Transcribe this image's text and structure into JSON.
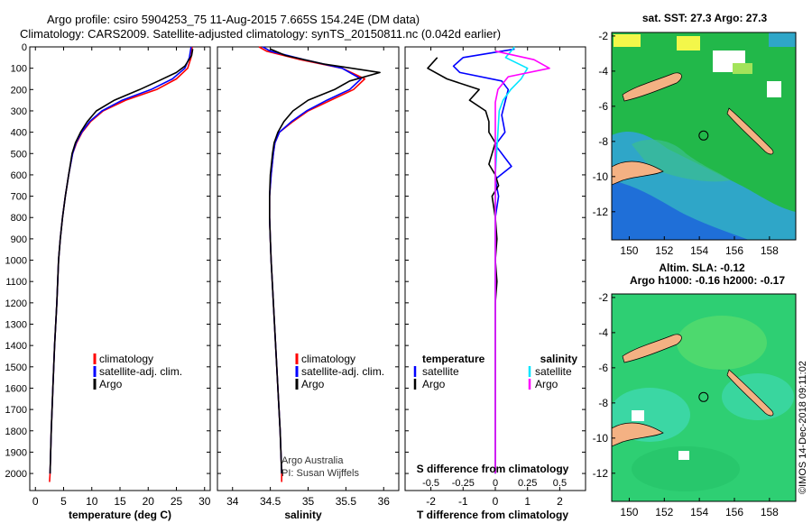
{
  "title": {
    "line1": "Argo profile: csiro 5904253_75 11-Aug-2015 7.665S 154.24E (DM data)",
    "line2": "Climatology: CARS2009. Satellite-adjusted climatology: synTS_20150811.nc (0.042d earlier)"
  },
  "credit": {
    "line1": "Argo Australia",
    "line2": "PI: Susan Wijffels"
  },
  "stamp": "©IMOS 14-Dec-2018 09:11:02",
  "colors": {
    "climatology": "#ff0000",
    "satellite": "#0000ff",
    "argo": "#000000",
    "argo_salinity_diff": "#ff00ff",
    "satellite_salinity_diff": "#00e5ff",
    "land": "#f4b183"
  },
  "chart_data": [
    {
      "type": "line",
      "name": "temperature-profile",
      "xlabel": "temperature (deg C)",
      "ylabel": "",
      "xlim": [
        -1,
        31
      ],
      "ylim": [
        2080,
        0
      ],
      "xticks": [
        0,
        5,
        10,
        15,
        20,
        25,
        30
      ],
      "yticks": [
        0,
        100,
        200,
        300,
        400,
        500,
        600,
        700,
        800,
        900,
        1000,
        1100,
        1200,
        1300,
        1400,
        1500,
        1600,
        1700,
        1800,
        1900,
        2000
      ],
      "legend": [
        "climatology",
        "satellite-adj. clim.",
        "Argo"
      ],
      "legend_position": "lower-center",
      "series": [
        {
          "name": "climatology",
          "color": "#ff0000",
          "values": [
            [
              27.8,
              0
            ],
            [
              27.6,
              50
            ],
            [
              27.0,
              100
            ],
            [
              25.0,
              150
            ],
            [
              21.5,
              200
            ],
            [
              16.0,
              250
            ],
            [
              12.0,
              300
            ],
            [
              9.8,
              350
            ],
            [
              8.3,
              400
            ],
            [
              7.3,
              450
            ],
            [
              6.6,
              500
            ],
            [
              5.9,
              600
            ],
            [
              5.3,
              700
            ],
            [
              4.8,
              800
            ],
            [
              4.4,
              900
            ],
            [
              4.1,
              1000
            ],
            [
              3.8,
              1200
            ],
            [
              3.4,
              1400
            ],
            [
              3.1,
              1600
            ],
            [
              2.8,
              1800
            ],
            [
              2.6,
              2000
            ],
            [
              2.5,
              2040
            ]
          ]
        },
        {
          "name": "satellite-adj. clim.",
          "color": "#0000ff",
          "values": [
            [
              27.6,
              0
            ],
            [
              27.3,
              50
            ],
            [
              26.5,
              100
            ],
            [
              24.3,
              150
            ],
            [
              20.5,
              200
            ],
            [
              15.4,
              250
            ],
            [
              11.8,
              300
            ],
            [
              9.6,
              350
            ],
            [
              8.2,
              400
            ],
            [
              7.2,
              450
            ],
            [
              6.6,
              500
            ],
            [
              5.9,
              600
            ],
            [
              5.3,
              700
            ],
            [
              4.8,
              800
            ],
            [
              4.4,
              900
            ],
            [
              4.1,
              1000
            ],
            [
              3.8,
              1200
            ],
            [
              3.4,
              1400
            ],
            [
              3.1,
              1600
            ],
            [
              2.8,
              1800
            ],
            [
              2.6,
              2000
            ]
          ]
        },
        {
          "name": "Argo",
          "color": "#000000",
          "values": [
            [
              27.9,
              10
            ],
            [
              27.7,
              40
            ],
            [
              26.5,
              90
            ],
            [
              25.0,
              120
            ],
            [
              21.8,
              160
            ],
            [
              18.5,
              200
            ],
            [
              14.0,
              250
            ],
            [
              10.8,
              300
            ],
            [
              9.2,
              350
            ],
            [
              8.0,
              400
            ],
            [
              7.1,
              450
            ],
            [
              6.5,
              500
            ],
            [
              5.9,
              600
            ],
            [
              5.3,
              700
            ],
            [
              4.8,
              800
            ],
            [
              4.4,
              900
            ],
            [
              4.1,
              1000
            ],
            [
              3.8,
              1200
            ],
            [
              3.4,
              1400
            ],
            [
              3.1,
              1600
            ],
            [
              2.8,
              1800
            ],
            [
              2.6,
              2000
            ]
          ]
        }
      ]
    },
    {
      "type": "line",
      "name": "salinity-profile",
      "xlabel": "salinity",
      "ylabel": "",
      "xlim": [
        33.8,
        36.2
      ],
      "ylim": [
        2080,
        0
      ],
      "xticks": [
        34,
        34.5,
        35,
        35.5,
        36
      ],
      "legend": [
        "climatology",
        "satellite-adj. clim.",
        "Argo"
      ],
      "legend_position": "lower-right",
      "series": [
        {
          "name": "climatology",
          "color": "#ff0000",
          "values": [
            [
              34.35,
              0
            ],
            [
              34.45,
              20
            ],
            [
              34.9,
              60
            ],
            [
              35.45,
              100
            ],
            [
              35.75,
              150
            ],
            [
              35.6,
              200
            ],
            [
              35.3,
              250
            ],
            [
              35.0,
              300
            ],
            [
              34.8,
              350
            ],
            [
              34.62,
              400
            ],
            [
              34.56,
              450
            ],
            [
              34.54,
              500
            ],
            [
              34.51,
              600
            ],
            [
              34.49,
              700
            ],
            [
              34.49,
              800
            ],
            [
              34.5,
              900
            ],
            [
              34.51,
              1000
            ],
            [
              34.54,
              1200
            ],
            [
              34.57,
              1400
            ],
            [
              34.6,
              1600
            ],
            [
              34.63,
              1800
            ],
            [
              34.65,
              2000
            ],
            [
              34.65,
              2040
            ]
          ]
        },
        {
          "name": "satellite-adj. clim.",
          "color": "#0000ff",
          "values": [
            [
              34.4,
              0
            ],
            [
              34.5,
              20
            ],
            [
              34.95,
              60
            ],
            [
              35.45,
              100
            ],
            [
              35.7,
              150
            ],
            [
              35.55,
              200
            ],
            [
              35.25,
              250
            ],
            [
              34.98,
              300
            ],
            [
              34.78,
              350
            ],
            [
              34.62,
              400
            ],
            [
              34.56,
              450
            ],
            [
              34.54,
              500
            ],
            [
              34.51,
              600
            ],
            [
              34.49,
              700
            ],
            [
              34.49,
              800
            ],
            [
              34.5,
              900
            ],
            [
              34.51,
              1000
            ],
            [
              34.54,
              1200
            ],
            [
              34.57,
              1400
            ],
            [
              34.6,
              1600
            ],
            [
              34.63,
              1800
            ],
            [
              34.65,
              2000
            ]
          ]
        },
        {
          "name": "Argo",
          "color": "#000000",
          "values": [
            [
              34.5,
              10
            ],
            [
              34.7,
              40
            ],
            [
              35.2,
              80
            ],
            [
              35.95,
              120
            ],
            [
              35.55,
              160
            ],
            [
              35.35,
              200
            ],
            [
              35.0,
              250
            ],
            [
              34.8,
              300
            ],
            [
              34.68,
              350
            ],
            [
              34.6,
              400
            ],
            [
              34.55,
              450
            ],
            [
              34.53,
              500
            ],
            [
              34.5,
              600
            ],
            [
              34.49,
              700
            ],
            [
              34.49,
              800
            ],
            [
              34.5,
              900
            ],
            [
              34.51,
              1000
            ],
            [
              34.54,
              1200
            ],
            [
              34.57,
              1400
            ],
            [
              34.6,
              1600
            ],
            [
              34.63,
              1800
            ],
            [
              34.65,
              2000
            ]
          ]
        }
      ]
    },
    {
      "type": "line",
      "name": "difference-profile",
      "xlabel": "T difference from climatology",
      "secondary_xlabel": "S difference from climatology",
      "xlim": [
        -2.8,
        2.8
      ],
      "ylim": [
        2080,
        0
      ],
      "xticks": [
        -2,
        -1,
        0,
        1,
        2
      ],
      "secondary_xticks": [
        "-0.5",
        "-0.25",
        "0",
        "0.25",
        "0.5"
      ],
      "legend_left_title": "temperature",
      "legend_right_title": "salinity",
      "legend": [
        "satellite",
        "Argo"
      ],
      "series": [
        {
          "name": "temperature satellite",
          "color": "#0000ff",
          "values": [
            [
              0.6,
              10
            ],
            [
              -1.0,
              50
            ],
            [
              -1.3,
              90
            ],
            [
              -1.1,
              120
            ],
            [
              0.2,
              160
            ],
            [
              0.4,
              200
            ],
            [
              0.3,
              260
            ],
            [
              0.2,
              320
            ],
            [
              0.3,
              400
            ],
            [
              0.0,
              460
            ],
            [
              0.3,
              520
            ],
            [
              0.5,
              560
            ],
            [
              0.0,
              620
            ],
            [
              0.1,
              700
            ],
            [
              0.0,
              800
            ],
            [
              0.0,
              1000
            ],
            [
              0.0,
              1500
            ],
            [
              0.0,
              2000
            ]
          ]
        },
        {
          "name": "temperature Argo",
          "color": "#000000",
          "values": [
            [
              -1.8,
              50
            ],
            [
              -2.1,
              100
            ],
            [
              -1.5,
              150
            ],
            [
              -0.5,
              200
            ],
            [
              -0.8,
              250
            ],
            [
              -0.3,
              300
            ],
            [
              -0.2,
              350
            ],
            [
              -0.2,
              400
            ],
            [
              0.0,
              450
            ],
            [
              -0.1,
              500
            ],
            [
              -0.2,
              550
            ],
            [
              0.0,
              600
            ],
            [
              0.1,
              650
            ],
            [
              -0.1,
              700
            ],
            [
              0.0,
              800
            ],
            [
              0.05,
              900
            ],
            [
              0.0,
              1000
            ],
            [
              0.05,
              1100
            ],
            [
              0.0,
              1200
            ],
            [
              0.0,
              1500
            ],
            [
              0.0,
              2000
            ]
          ]
        },
        {
          "name": "salinity satellite",
          "color": "#00e5ff",
          "values": [
            [
              0.15,
              0
            ],
            [
              0.08,
              50
            ],
            [
              0.25,
              100
            ],
            [
              0.2,
              150
            ],
            [
              0.12,
              200
            ],
            [
              0.06,
              250
            ],
            [
              0.03,
              300
            ],
            [
              0.02,
              400
            ],
            [
              0.01,
              500
            ],
            [
              0.0,
              600
            ],
            [
              0.0,
              800
            ],
            [
              0.0,
              1000
            ],
            [
              0.0,
              1500
            ],
            [
              0.0,
              2000
            ]
          ]
        },
        {
          "name": "salinity Argo",
          "color": "#ff00ff",
          "values": [
            [
              0.0,
              20
            ],
            [
              0.3,
              60
            ],
            [
              0.42,
              100
            ],
            [
              0.1,
              140
            ],
            [
              0.02,
              200
            ],
            [
              0.0,
              260
            ],
            [
              0.0,
              320
            ],
            [
              0.0,
              400
            ],
            [
              0.0,
              500
            ],
            [
              0.0,
              700
            ],
            [
              0.0,
              1000
            ],
            [
              0.0,
              1500
            ],
            [
              0.0,
              2000
            ]
          ]
        }
      ]
    },
    {
      "type": "heatmap",
      "name": "sst-map",
      "title": "sat. SST: 27.3 Argo: 27.3",
      "xticks": [
        150,
        152,
        154,
        156,
        158
      ],
      "yticks": [
        -2,
        -4,
        -6,
        -8,
        -10,
        -12
      ],
      "xlim": [
        149,
        159.5
      ],
      "ylim": [
        -13.6,
        -1.8
      ],
      "argo_position": [
        154.24,
        -7.665
      ]
    },
    {
      "type": "heatmap",
      "name": "sla-map",
      "title": "Altim. SLA: -0.12",
      "subtitle": "Argo h1000: -0.16 h2000: -0.17",
      "xticks": [
        150,
        152,
        154,
        156,
        158
      ],
      "yticks": [
        -2,
        -4,
        -6,
        -8,
        -10,
        -12
      ],
      "xlim": [
        149,
        159.5
      ],
      "ylim": [
        -13.6,
        -1.8
      ],
      "argo_position": [
        154.24,
        -7.665
      ]
    }
  ]
}
